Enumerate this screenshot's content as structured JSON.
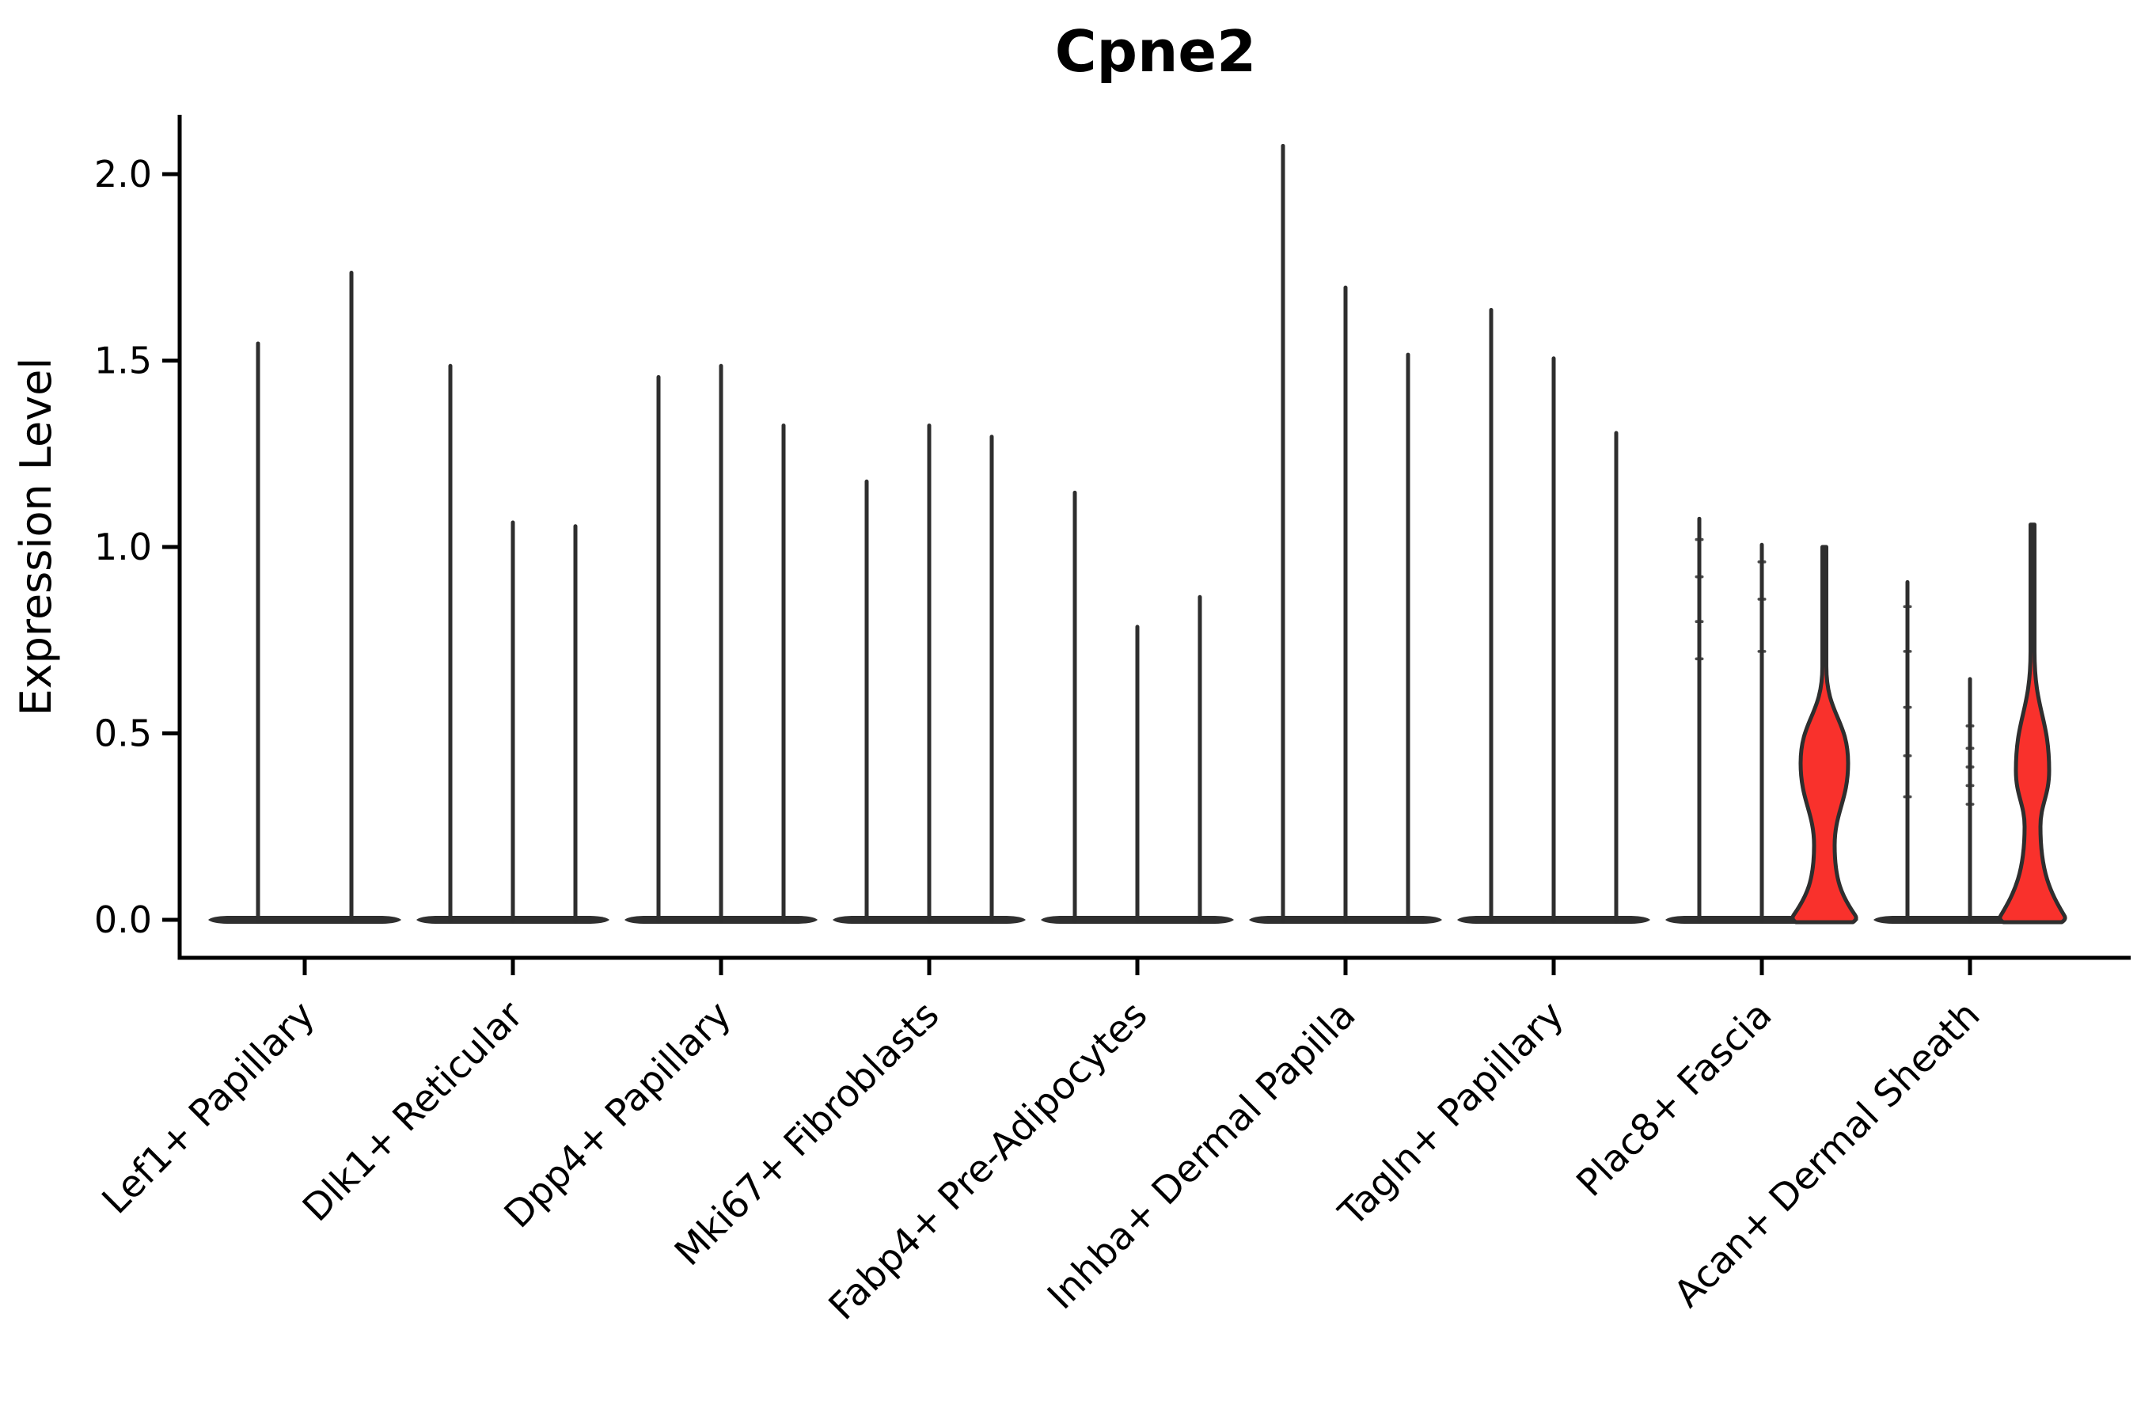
{
  "title": "Cpne2",
  "ylabel": "Expression Level",
  "colors": {
    "background": "#ffffff",
    "axis": "#000000",
    "violin_stroke": "#2e2e2e",
    "baseline_band": "#2f2f2f",
    "highlight_fill_red": "#f9312c",
    "text": "#000000"
  },
  "chart_data": {
    "type": "violin",
    "title": "Cpne2",
    "xlabel": "",
    "ylabel": "Expression Level",
    "ylim": [
      0,
      2.2
    ],
    "grid": false,
    "legend": null,
    "y_ticks": [
      0.0,
      0.5,
      1.0,
      1.5,
      2.0
    ],
    "y_tick_labels": [
      "0.0",
      "0.5",
      "1.0",
      "1.5",
      "2.0"
    ],
    "categories": [
      "Lef1+ Papillary",
      "Dlk1+ Reticular",
      "Dpp4+ Papillary",
      "Mki67+ Fibroblasts",
      "Fabp4+ Pre-Adipocytes",
      "Inhba+ Dermal Papilla",
      "Tagln+ Papillary",
      "Plac8+ Fascia",
      "Acan+ Dermal Sheath"
    ],
    "groups": [
      {
        "category": "Lef1+ Papillary",
        "violins": [
          {
            "max": 1.55,
            "shape": "spike"
          },
          {
            "max": 1.74,
            "shape": "spike"
          }
        ]
      },
      {
        "category": "Dlk1+ Reticular",
        "violins": [
          {
            "max": 1.49,
            "shape": "spike"
          },
          {
            "max": 1.07,
            "shape": "spike"
          },
          {
            "max": 1.06,
            "shape": "spike"
          }
        ]
      },
      {
        "category": "Dpp4+ Papillary",
        "violins": [
          {
            "max": 1.46,
            "shape": "spike"
          },
          {
            "max": 1.49,
            "shape": "spike"
          },
          {
            "max": 1.33,
            "shape": "spike"
          }
        ]
      },
      {
        "category": "Mki67+ Fibroblasts",
        "violins": [
          {
            "max": 1.18,
            "shape": "spike"
          },
          {
            "max": 1.33,
            "shape": "spike"
          },
          {
            "max": 1.3,
            "shape": "spike"
          }
        ]
      },
      {
        "category": "Fabp4+ Pre-Adipocytes",
        "violins": [
          {
            "max": 1.15,
            "shape": "spike"
          },
          {
            "max": 0.79,
            "shape": "spike"
          },
          {
            "max": 0.87,
            "shape": "spike"
          }
        ]
      },
      {
        "category": "Inhba+ Dermal Papilla",
        "violins": [
          {
            "max": 2.08,
            "shape": "spike"
          },
          {
            "max": 1.7,
            "shape": "spike"
          },
          {
            "max": 1.52,
            "shape": "spike"
          }
        ]
      },
      {
        "category": "Tagln+ Papillary",
        "violins": [
          {
            "max": 1.64,
            "shape": "spike"
          },
          {
            "max": 1.51,
            "shape": "spike"
          },
          {
            "max": 1.31,
            "shape": "spike"
          }
        ]
      },
      {
        "category": "Plac8+ Fascia",
        "violins": [
          {
            "max": 1.08,
            "shape": "spike",
            "points": [
              1.02,
              0.92,
              0.8,
              0.7
            ]
          },
          {
            "max": 1.01,
            "shape": "spike",
            "points": [
              0.96,
              0.86,
              0.72
            ]
          },
          {
            "max": 1.0,
            "shape": "violin",
            "fill": "red",
            "profile": {
              "shoulder": 0.68,
              "bulge_value": 0.42,
              "bulge_halfwidth": 30,
              "waist_value": 0.2,
              "waist_halfwidth": 13,
              "base_halfwidth": 40
            }
          }
        ]
      },
      {
        "category": "Acan+ Dermal Sheath",
        "violins": [
          {
            "max": 0.91,
            "shape": "spike",
            "points": [
              0.84,
              0.72,
              0.57,
              0.44,
              0.33
            ]
          },
          {
            "max": 0.65,
            "shape": "spike",
            "points": [
              0.52,
              0.46,
              0.41,
              0.36,
              0.31
            ]
          },
          {
            "max": 1.06,
            "shape": "violin",
            "fill": "red",
            "profile": {
              "shoulder": 0.72,
              "bulge_value": 0.4,
              "bulge_halfwidth": 21,
              "waist_value": 0.25,
              "waist_halfwidth": 10,
              "base_halfwidth": 41
            }
          }
        ]
      }
    ]
  }
}
